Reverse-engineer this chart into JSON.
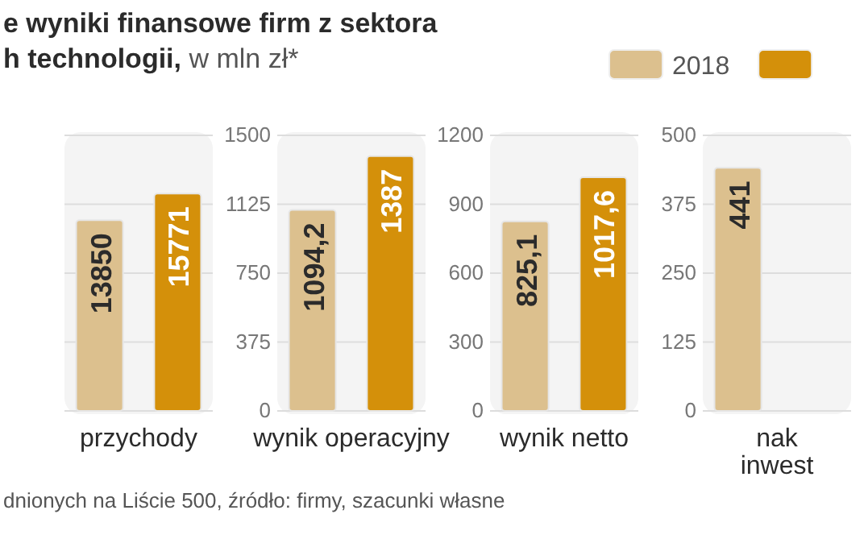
{
  "chart_data": [
    {
      "type": "bar",
      "title": "e wyniki finansowe firm z sektora h technologii,",
      "subtitle": "w mln zł*",
      "legend": "top right",
      "annotations": [
        "dnionych na Liście 500, źródło: firmy, szacunki własne"
      ],
      "categories": [
        "przychody"
      ],
      "ylim": [
        0,
        20000
      ],
      "yticks": [
        {
          "value": 0,
          "label": null
        },
        {
          "value": 5000,
          "label": null
        },
        {
          "value": 10000,
          "label": null
        },
        {
          "value": 15000,
          "label": null
        },
        {
          "value": 20000,
          "label": null
        }
      ],
      "tick_labels": "x",
      "grid": "y",
      "series": [
        {
          "name": "2018",
          "color": "#dcc08e",
          "values": [
            13850
          ],
          "value_labels": [
            "13850"
          ]
        },
        {
          "color": "#d4900a",
          "values": [
            15771
          ],
          "value_labels": [
            "15771"
          ]
        }
      ]
    },
    {
      "type": "bar",
      "categories": [
        "wynik operacyjny"
      ],
      "ylim": [
        0,
        1500
      ],
      "yticks": [
        0,
        375,
        750,
        1125,
        1500
      ],
      "grid": "y",
      "series": [
        {
          "color": "#dcc08e",
          "values": [
            1094.2
          ],
          "value_labels": [
            "1094,2"
          ]
        },
        {
          "color": "#d4900a",
          "values": [
            1387
          ],
          "value_labels": [
            "1387"
          ]
        }
      ]
    },
    {
      "type": "bar",
      "categories": [
        "wynik netto"
      ],
      "ylim": [
        0,
        1200
      ],
      "yticks": [
        0,
        300,
        600,
        900,
        1200
      ],
      "grid": "y",
      "series": [
        {
          "color": "#dcc08e",
          "values": [
            825.1
          ],
          "value_labels": [
            "825,1"
          ]
        },
        {
          "color": "#d4900a",
          "values": [
            1017.6
          ],
          "value_labels": [
            "1017,6"
          ]
        }
      ]
    },
    {
      "type": "bar",
      "categories": [
        "nak\ninwest"
      ],
      "ylim": [
        0,
        500
      ],
      "yticks": [
        0,
        125,
        250,
        375,
        500
      ],
      "grid": "y",
      "series": [
        {
          "color": "#dcc08e",
          "values": [
            441
          ],
          "value_labels": [
            "441"
          ]
        }
      ]
    }
  ]
}
